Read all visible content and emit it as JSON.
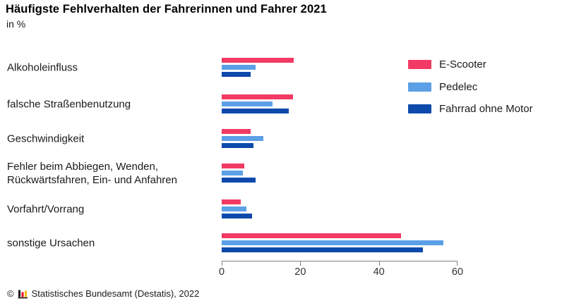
{
  "header": {
    "title": "Häufigste Fehlverhalten der Fahrerinnen und Fahrer 2021",
    "subtitle": "in %"
  },
  "chart_data": {
    "type": "bar",
    "orientation": "horizontal",
    "title": "Häufigste Fehlverhalten der Fahrerinnen und Fahrer 2021",
    "unit_label": "in %",
    "categories": [
      "Alkoholeinfluss",
      "falsche Straßenbenutzung",
      "Geschwindigkeit",
      "Fehler beim Abbiegen, Wenden,\nRückwärtsfahren, Ein- und Anfahren",
      "Vorfahrt/Vorrang",
      "sonstige Ursachen"
    ],
    "series": [
      {
        "name": "E-Scooter",
        "color": "#F23A64",
        "values": [
          18.3,
          18.2,
          7.3,
          5.7,
          4.8,
          45.6
        ]
      },
      {
        "name": "Pedelec",
        "color": "#5BA0E6",
        "values": [
          8.7,
          12.9,
          10.6,
          5.4,
          6.2,
          56.4
        ]
      },
      {
        "name": "Fahrrad ohne Motor",
        "color": "#0D4AAB",
        "values": [
          7.3,
          17.0,
          8.1,
          8.6,
          7.8,
          51.1
        ]
      }
    ],
    "xlim": [
      0,
      60
    ],
    "xticks": [
      0,
      20,
      40,
      60
    ],
    "grid": false,
    "legend_position": "right"
  },
  "colors": {
    "axis": "#808080",
    "text": "#1a1a1a",
    "logo_black": "#1a1a1a",
    "logo_red": "#e2001a",
    "logo_gold": "#f2bc00"
  },
  "footer": {
    "copyright": "©",
    "logo_icon": "destatis-mini-bar-chart-icon",
    "source": "Statistisches Bundesamt (Destatis), 2022"
  }
}
